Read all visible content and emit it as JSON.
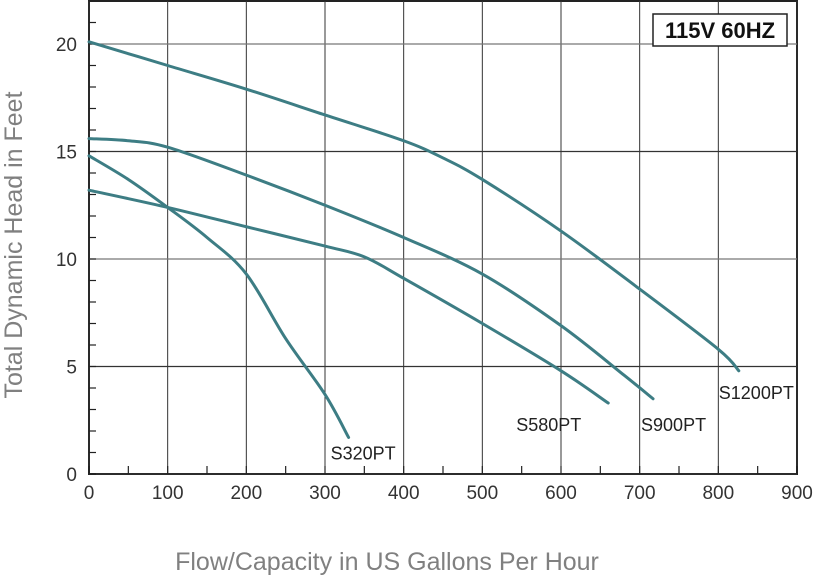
{
  "chart_data": {
    "type": "line",
    "title": "",
    "annotation": "115V 60HZ",
    "xlabel": "Flow/Capacity in US Gallons Per Hour",
    "ylabel": "Total Dynamic Head in Feet",
    "xlim": [
      0,
      900
    ],
    "ylim": [
      0,
      22
    ],
    "xticks": [
      0,
      100,
      200,
      300,
      400,
      500,
      600,
      700,
      800,
      900
    ],
    "yticks": [
      0,
      5,
      10,
      15,
      20
    ],
    "grid": true,
    "line_color": "#3d7d84",
    "series": [
      {
        "name": "S320PT",
        "x": [
          0,
          50,
          100,
          150,
          200,
          250,
          300,
          330
        ],
        "y": [
          14.8,
          13.7,
          12.4,
          11.0,
          9.3,
          6.3,
          3.7,
          1.7
        ]
      },
      {
        "name": "S580PT",
        "x": [
          0,
          100,
          200,
          300,
          350,
          400,
          500,
          600,
          660
        ],
        "y": [
          13.2,
          12.4,
          11.5,
          10.6,
          10.1,
          9.1,
          7.0,
          4.8,
          3.3
        ]
      },
      {
        "name": "S900PT",
        "x": [
          0,
          50,
          100,
          200,
          300,
          400,
          500,
          600,
          680,
          717
        ],
        "y": [
          15.6,
          15.5,
          15.2,
          13.9,
          12.5,
          11.0,
          9.3,
          6.9,
          4.6,
          3.5
        ]
      },
      {
        "name": "S1200PT",
        "x": [
          0,
          100,
          200,
          300,
          400,
          450,
          500,
          600,
          700,
          800,
          826
        ],
        "y": [
          20.1,
          19.0,
          17.9,
          16.7,
          15.5,
          14.7,
          13.7,
          11.3,
          8.6,
          5.8,
          4.8
        ]
      }
    ]
  }
}
